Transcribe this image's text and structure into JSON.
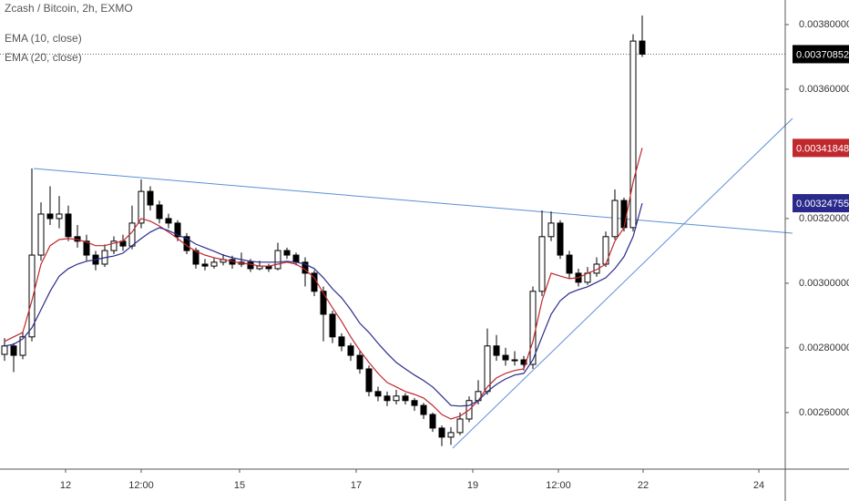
{
  "chart_data": {
    "type": "candlestick",
    "title": "Zcash / Bitcoin, 2h, EXMO",
    "up_color": "#ffffff",
    "down_color": "#000000",
    "wick_color": "#000000",
    "open": [
      0.00278,
      0.002806,
      0.002777,
      0.002834,
      0.003087,
      0.003214,
      0.0032,
      0.003214,
      0.003144,
      0.00313,
      0.003087,
      0.003059,
      0.003101,
      0.00313,
      0.003115,
      0.003186,
      0.003284,
      0.003242,
      0.0032,
      0.003186,
      0.003144,
      0.003101,
      0.003059,
      0.003053,
      0.003065,
      0.003073,
      0.003059,
      0.003065,
      0.003045,
      0.003053,
      0.003045,
      0.003101,
      0.003087,
      0.003065,
      0.003031,
      0.002975,
      0.002904,
      0.002834,
      0.002806,
      0.002777,
      0.002735,
      0.002665,
      0.002651,
      0.002637,
      0.002651,
      0.002637,
      0.002622,
      0.002594,
      0.002552,
      0.002524,
      0.002538,
      0.00258,
      0.002637,
      0.002665,
      0.002806,
      0.002777,
      0.002763,
      0.002763,
      0.002749,
      0.002975,
      0.003144,
      0.003186,
      0.003087,
      0.003031,
      0.003003,
      0.003031,
      0.003059,
      0.003144,
      0.003256,
      0.003172,
      0.003749
    ],
    "high": [
      0.00283,
      0.002815,
      0.00285,
      0.003355,
      0.00325,
      0.0033,
      0.00327,
      0.00324,
      0.00318,
      0.00315,
      0.0031,
      0.00312,
      0.003145,
      0.00315,
      0.00324,
      0.003321,
      0.0033,
      0.003255,
      0.003215,
      0.003195,
      0.003155,
      0.00311,
      0.003075,
      0.00308,
      0.00309,
      0.003085,
      0.003095,
      0.003075,
      0.00307,
      0.00306,
      0.003125,
      0.00311,
      0.003095,
      0.00308,
      0.00304,
      0.00299,
      0.002915,
      0.002845,
      0.002815,
      0.00279,
      0.002745,
      0.00268,
      0.002665,
      0.00267,
      0.00266,
      0.002645,
      0.00263,
      0.0026,
      0.00256,
      0.002555,
      0.0026,
      0.00265,
      0.0027,
      0.00286,
      0.00284,
      0.0028,
      0.00279,
      0.002775,
      0.00299,
      0.003225,
      0.003222,
      0.003195,
      0.0031,
      0.003045,
      0.00305,
      0.00308,
      0.00316,
      0.00329,
      0.003265,
      0.00377,
      0.003828
    ],
    "low": [
      0.00276,
      0.002725,
      0.002765,
      0.00282,
      0.00307,
      0.00318,
      0.00317,
      0.00313,
      0.00311,
      0.00307,
      0.00304,
      0.00305,
      0.00309,
      0.0031,
      0.003105,
      0.00317,
      0.003225,
      0.003185,
      0.00317,
      0.00313,
      0.00309,
      0.003045,
      0.00304,
      0.003045,
      0.003055,
      0.003045,
      0.00305,
      0.003035,
      0.00304,
      0.003035,
      0.00304,
      0.003075,
      0.003055,
      0.00299,
      0.00296,
      0.00282,
      0.002815,
      0.00279,
      0.00276,
      0.00272,
      0.00265,
      0.002635,
      0.00262,
      0.002625,
      0.002625,
      0.002605,
      0.00258,
      0.00254,
      0.002496,
      0.0025,
      0.00253,
      0.00257,
      0.002625,
      0.002655,
      0.00276,
      0.002745,
      0.002745,
      0.00273,
      0.002735,
      0.00296,
      0.00313,
      0.003075,
      0.003015,
      0.00299,
      0.002995,
      0.00302,
      0.00305,
      0.003135,
      0.00316,
      0.00316,
      0.0037
    ],
    "close": [
      0.002806,
      0.002777,
      0.002834,
      0.003087,
      0.003214,
      0.0032,
      0.003214,
      0.003144,
      0.00313,
      0.003087,
      0.003059,
      0.003101,
      0.00313,
      0.003115,
      0.003186,
      0.003284,
      0.003242,
      0.0032,
      0.003186,
      0.003144,
      0.003101,
      0.003059,
      0.003053,
      0.003065,
      0.003073,
      0.003059,
      0.003065,
      0.003045,
      0.003053,
      0.003045,
      0.003101,
      0.003087,
      0.003065,
      0.003031,
      0.002975,
      0.002904,
      0.002834,
      0.002806,
      0.002777,
      0.002735,
      0.002665,
      0.002651,
      0.002637,
      0.002651,
      0.002637,
      0.002622,
      0.002594,
      0.002552,
      0.002524,
      0.002538,
      0.00258,
      0.002637,
      0.002665,
      0.002806,
      0.002777,
      0.002763,
      0.002763,
      0.002749,
      0.002975,
      0.003144,
      0.003186,
      0.003087,
      0.003031,
      0.003003,
      0.003031,
      0.003059,
      0.003144,
      0.003256,
      0.003172,
      0.003749,
      0.00370852
    ],
    "overlays": [
      {
        "name": "EMA (10, close)",
        "color": "#c0282d",
        "values": [
          0.00282,
          0.002834,
          0.002848,
          0.002946,
          0.003059,
          0.003116,
          0.003135,
          0.003138,
          0.003135,
          0.003127,
          0.003116,
          0.003116,
          0.003124,
          0.00313,
          0.003158,
          0.0032,
          0.003192,
          0.003177,
          0.003158,
          0.003138,
          0.003116,
          0.003099,
          0.003087,
          0.003079,
          0.003073,
          0.003068,
          0.003062,
          0.003059,
          0.003053,
          0.003053,
          0.003059,
          0.003065,
          0.003059,
          0.003042,
          0.003017,
          0.002969,
          0.002924,
          0.002882,
          0.002834,
          0.002792,
          0.002755,
          0.002721,
          0.002693,
          0.002679,
          0.002665,
          0.002656,
          0.002645,
          0.002622,
          0.002594,
          0.00258,
          0.002589,
          0.002608,
          0.002637,
          0.002679,
          0.002707,
          0.002721,
          0.00273,
          0.002735,
          0.00282,
          0.002946,
          0.003031,
          0.003022,
          0.003014,
          0.003017,
          0.003031,
          0.003042,
          0.003059,
          0.00313,
          0.003172,
          0.003313,
          0.00341848
        ]
      },
      {
        "name": "EMA (20, close)",
        "color": "#2a2a8c",
        "values": [
          0.002806,
          0.002811,
          0.002828,
          0.002862,
          0.002918,
          0.002975,
          0.003022,
          0.003045,
          0.003059,
          0.003068,
          0.003073,
          0.003079,
          0.003084,
          0.003093,
          0.003116,
          0.003138,
          0.003158,
          0.003172,
          0.003163,
          0.003149,
          0.003138,
          0.003121,
          0.00311,
          0.003099,
          0.003087,
          0.003079,
          0.003073,
          0.003068,
          0.003065,
          0.003065,
          0.003065,
          0.003068,
          0.003065,
          0.003059,
          0.003045,
          0.003017,
          0.002983,
          0.002955,
          0.002918,
          0.002876,
          0.002848,
          0.002814,
          0.002783,
          0.002755,
          0.002735,
          0.002716,
          0.002699,
          0.002679,
          0.002651,
          0.002622,
          0.00262,
          0.002622,
          0.002637,
          0.002665,
          0.002687,
          0.002704,
          0.002716,
          0.002721,
          0.002763,
          0.002834,
          0.002904,
          0.002946,
          0.002969,
          0.00298,
          0.002989,
          0.003003,
          0.003017,
          0.003045,
          0.003082,
          0.003144,
          0.00324755
        ]
      }
    ],
    "xlim": [
      0,
      86.2
    ],
    "xticks": [
      {
        "value": 7.2,
        "label": "12"
      },
      {
        "value": 15.5,
        "label": "12:00"
      },
      {
        "value": 26.3,
        "label": "15"
      },
      {
        "value": 39.1,
        "label": "17"
      },
      {
        "value": 51.9,
        "label": "19"
      },
      {
        "value": 61.3,
        "label": "12:00"
      },
      {
        "value": 70.6,
        "label": "22"
      },
      {
        "value": 83.3,
        "label": "24"
      }
    ],
    "ylim": [
      0.002425,
      0.003876
    ],
    "yticks": [
      {
        "value": 0.0026,
        "label": "0.00260000"
      },
      {
        "value": 0.0028,
        "label": "0.00280000"
      },
      {
        "value": 0.003,
        "label": "0.00300000"
      },
      {
        "value": 0.0032,
        "label": "0.00320000"
      },
      {
        "value": 0.0036,
        "label": "0.00360000"
      },
      {
        "value": 0.0038,
        "label": "0.00380000"
      }
    ]
  }
}
